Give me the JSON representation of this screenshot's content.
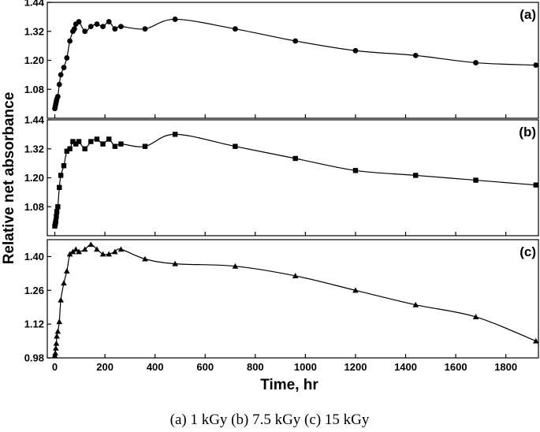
{
  "ylabel": "Relative net absorbance",
  "xlabel": "Time, hr",
  "caption": "(a) 1 kGy (b) 7.5 kGy (c) 15 kGy",
  "x_ticks": [
    0,
    200,
    400,
    600,
    800,
    1000,
    1200,
    1400,
    1600,
    1800
  ],
  "xlim": [
    -30,
    1930
  ],
  "chart_data": [
    {
      "type": "line",
      "panel_label": "(a)",
      "marker": "circle",
      "ylim": [
        0.96,
        1.44
      ],
      "y_ticks": [
        "1.08",
        "1.20",
        "1.32",
        "1.44"
      ],
      "x": [
        0,
        2,
        4,
        6,
        8,
        12,
        18,
        24,
        36,
        48,
        60,
        72,
        78,
        84,
        96,
        120,
        144,
        168,
        192,
        216,
        240,
        264,
        360,
        480,
        720,
        960,
        1200,
        1440,
        1680,
        1920
      ],
      "y": [
        1.0,
        1.01,
        1.02,
        1.03,
        1.04,
        1.05,
        1.1,
        1.14,
        1.17,
        1.21,
        1.28,
        1.32,
        1.33,
        1.35,
        1.36,
        1.32,
        1.34,
        1.35,
        1.34,
        1.36,
        1.33,
        1.34,
        1.33,
        1.37,
        1.33,
        1.28,
        1.24,
        1.22,
        1.19,
        1.18
      ]
    },
    {
      "type": "line",
      "panel_label": "(b)",
      "marker": "square",
      "ylim": [
        0.96,
        1.44
      ],
      "y_ticks": [
        "1.08",
        "1.20",
        "1.32",
        "1.44"
      ],
      "x": [
        0,
        2,
        4,
        6,
        8,
        12,
        18,
        24,
        36,
        48,
        60,
        72,
        84,
        96,
        120,
        144,
        168,
        192,
        216,
        240,
        264,
        360,
        480,
        720,
        960,
        1200,
        1440,
        1680,
        1920
      ],
      "y": [
        1.0,
        1.01,
        1.02,
        1.04,
        1.06,
        1.08,
        1.16,
        1.21,
        1.25,
        1.31,
        1.32,
        1.35,
        1.34,
        1.35,
        1.32,
        1.35,
        1.36,
        1.34,
        1.36,
        1.33,
        1.34,
        1.33,
        1.38,
        1.33,
        1.28,
        1.23,
        1.21,
        1.19,
        1.17
      ]
    },
    {
      "type": "line",
      "panel_label": "(c)",
      "marker": "triangle",
      "ylim": [
        0.98,
        1.47
      ],
      "y_ticks": [
        "0.98",
        "1.12",
        "1.26",
        "1.40"
      ],
      "x": [
        0,
        2,
        4,
        6,
        8,
        12,
        18,
        24,
        36,
        48,
        60,
        72,
        84,
        96,
        120,
        144,
        168,
        192,
        216,
        240,
        264,
        360,
        480,
        720,
        960,
        1200,
        1440,
        1680,
        1920
      ],
      "y": [
        0.99,
        1.0,
        1.02,
        1.04,
        1.07,
        1.09,
        1.13,
        1.22,
        1.29,
        1.34,
        1.41,
        1.42,
        1.43,
        1.42,
        1.43,
        1.45,
        1.43,
        1.41,
        1.41,
        1.42,
        1.43,
        1.39,
        1.37,
        1.36,
        1.32,
        1.26,
        1.2,
        1.15,
        1.05
      ]
    }
  ]
}
